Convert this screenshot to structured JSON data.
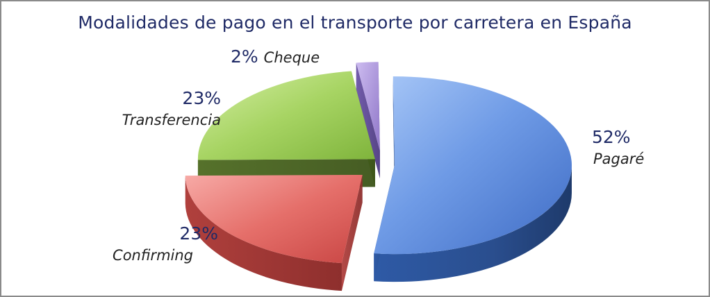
{
  "chart_data": {
    "type": "pie",
    "title": "Modalidades de pago en el transporte por carretera en España",
    "slices": [
      {
        "label": "Pagaré",
        "value": 52,
        "value_label": "52%",
        "color": "#4f7fd1"
      },
      {
        "label": "Confirming",
        "value": 23,
        "value_label": "23%",
        "color": "#df5d5a"
      },
      {
        "label": "Transferencia",
        "value": 23,
        "value_label": "23%",
        "color": "#97c94c"
      },
      {
        "label": "Cheque",
        "value": 2,
        "value_label": "2%",
        "color": "#a58fd6"
      }
    ],
    "legend": "none",
    "style": "3d-exploded"
  }
}
